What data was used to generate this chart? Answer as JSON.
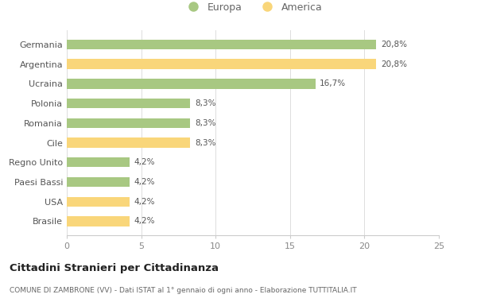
{
  "categories": [
    "Germania",
    "Argentina",
    "Ucraina",
    "Polonia",
    "Romania",
    "Cile",
    "Regno Unito",
    "Paesi Bassi",
    "USA",
    "Brasile"
  ],
  "values": [
    20.8,
    20.8,
    16.7,
    8.3,
    8.3,
    8.3,
    4.2,
    4.2,
    4.2,
    4.2
  ],
  "colors": [
    "#a8c882",
    "#f9d67a",
    "#a8c882",
    "#a8c882",
    "#a8c882",
    "#f9d67a",
    "#a8c882",
    "#a8c882",
    "#f9d67a",
    "#f9d67a"
  ],
  "labels": [
    "20,8%",
    "20,8%",
    "16,7%",
    "8,3%",
    "8,3%",
    "8,3%",
    "4,2%",
    "4,2%",
    "4,2%",
    "4,2%"
  ],
  "xlim": [
    0,
    25
  ],
  "xticks": [
    0,
    5,
    10,
    15,
    20,
    25
  ],
  "title": "Cittadini Stranieri per Cittadinanza",
  "subtitle": "COMUNE DI ZAMBRONE (VV) - Dati ISTAT al 1° gennaio di ogni anno - Elaborazione TUTTITALIA.IT",
  "legend_europa": "Europa",
  "legend_america": "America",
  "color_europa": "#a8c882",
  "color_america": "#f9d67a",
  "background_color": "#ffffff",
  "bar_height": 0.5
}
